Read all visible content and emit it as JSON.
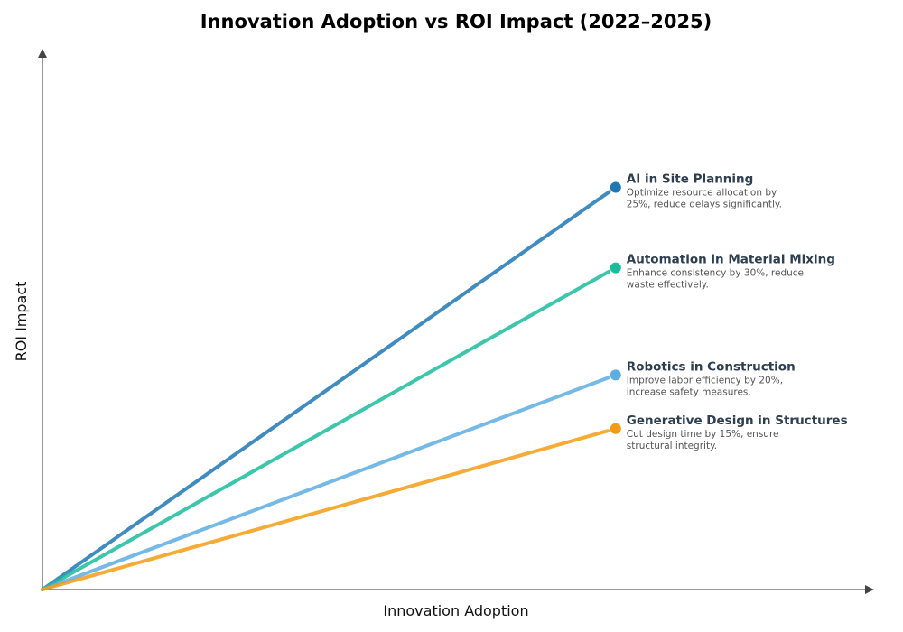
{
  "chart_data": {
    "type": "line",
    "title": "Innovation Adoption vs ROI Impact (2022–2025)",
    "xlabel": "Innovation Adoption",
    "ylabel": "ROI Impact",
    "xlim": [
      0,
      1
    ],
    "ylim": [
      0,
      1
    ],
    "grid": false,
    "legend": "none",
    "series": [
      {
        "name": "AI in Site Planning",
        "description_lines": [
          "Optimize resource allocation by",
          "25%, reduce delays significantly."
        ],
        "x": [
          0,
          0.69
        ],
        "y": [
          0,
          0.75
        ],
        "color": "#1f77b4"
      },
      {
        "name": "Automation in Material Mixing",
        "description_lines": [
          "Enhance consistency by 30%, reduce",
          "waste effectively."
        ],
        "x": [
          0,
          0.69
        ],
        "y": [
          0,
          0.6
        ],
        "color": "#1abc9c"
      },
      {
        "name": "Robotics in Construction",
        "description_lines": [
          "Improve labor efficiency by 20%,",
          "increase safety measures."
        ],
        "x": [
          0,
          0.69
        ],
        "y": [
          0,
          0.4
        ],
        "color": "#5dade2"
      },
      {
        "name": "Generative Design in Structures",
        "description_lines": [
          "Cut design time by 15%, ensure",
          "structural integrity."
        ],
        "x": [
          0,
          0.69
        ],
        "y": [
          0,
          0.3
        ],
        "color": "#f39c12"
      }
    ]
  }
}
